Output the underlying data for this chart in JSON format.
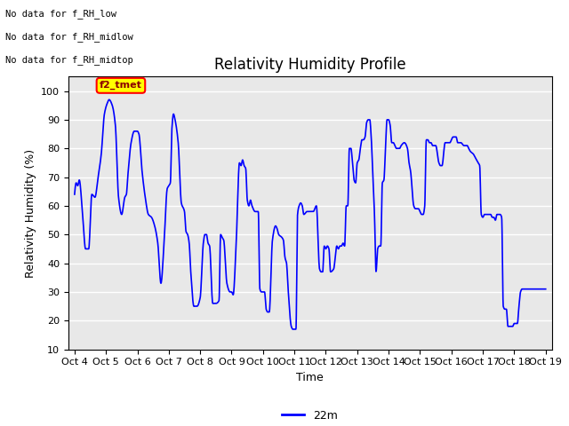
{
  "title": "Relativity Humidity Profile",
  "xlabel": "Time",
  "ylabel": "Relativity Humidity (%)",
  "ylim": [
    10,
    105
  ],
  "yticks": [
    10,
    20,
    30,
    40,
    50,
    60,
    70,
    80,
    90,
    100
  ],
  "legend_label": "22m",
  "legend_color": "blue",
  "line_color": "blue",
  "line_width": 1.2,
  "background_color": "#ffffff",
  "plot_bg_color": "#e8e8e8",
  "grid_color": "#ffffff",
  "annotations": [
    "No data for f_RH_low",
    "No data for f_RH_midlow",
    "No data for f_RH_midtop"
  ],
  "annotation_box_color": "#ffff00",
  "annotation_box_text": "f2_tmet",
  "x_tick_labels": [
    "Oct 4",
    "Oct 5",
    "Oct 6",
    "Oct 7",
    "Oct 8",
    "Oct 9",
    "Oct 10",
    "Oct 11",
    "Oct 12",
    "Oct 13",
    "Oct 14",
    "Oct 15",
    "Oct 16",
    "Oct 17",
    "Oct 18",
    "Oct 19"
  ],
  "title_fontsize": 12,
  "axis_fontsize": 9,
  "tick_fontsize": 8,
  "waypoints": [
    [
      0.0,
      64
    ],
    [
      0.05,
      68
    ],
    [
      0.1,
      67
    ],
    [
      0.15,
      69
    ],
    [
      0.25,
      58
    ],
    [
      0.35,
      45
    ],
    [
      0.45,
      45
    ],
    [
      0.55,
      64
    ],
    [
      0.65,
      63
    ],
    [
      0.75,
      70
    ],
    [
      0.85,
      78
    ],
    [
      0.95,
      92
    ],
    [
      1.05,
      96
    ],
    [
      1.1,
      97
    ],
    [
      1.2,
      95
    ],
    [
      1.3,
      88
    ],
    [
      1.4,
      63
    ],
    [
      1.5,
      57
    ],
    [
      1.6,
      63
    ],
    [
      1.65,
      64
    ],
    [
      1.7,
      71
    ],
    [
      1.8,
      82
    ],
    [
      1.9,
      86
    ],
    [
      2.0,
      86
    ],
    [
      2.05,
      85
    ],
    [
      2.15,
      72
    ],
    [
      2.25,
      63
    ],
    [
      2.35,
      57
    ],
    [
      2.45,
      56
    ],
    [
      2.55,
      53
    ],
    [
      2.65,
      47
    ],
    [
      2.75,
      33
    ],
    [
      2.85,
      47
    ],
    [
      2.95,
      66
    ],
    [
      3.0,
      67
    ],
    [
      3.05,
      68
    ],
    [
      3.1,
      87
    ],
    [
      3.15,
      92
    ],
    [
      3.2,
      90
    ],
    [
      3.3,
      82
    ],
    [
      3.4,
      61
    ],
    [
      3.5,
      58
    ],
    [
      3.55,
      51
    ],
    [
      3.6,
      50
    ],
    [
      3.65,
      47
    ],
    [
      3.7,
      37
    ],
    [
      3.8,
      25
    ],
    [
      3.9,
      25
    ],
    [
      4.0,
      28
    ],
    [
      4.1,
      47
    ],
    [
      4.15,
      50
    ],
    [
      4.2,
      50
    ],
    [
      4.25,
      47
    ],
    [
      4.3,
      46
    ],
    [
      4.4,
      26
    ],
    [
      4.5,
      26
    ],
    [
      4.6,
      27
    ],
    [
      4.65,
      50
    ],
    [
      4.7,
      49
    ],
    [
      4.75,
      48
    ],
    [
      4.85,
      33
    ],
    [
      4.95,
      30
    ],
    [
      5.0,
      30
    ],
    [
      5.05,
      29
    ],
    [
      5.15,
      48
    ],
    [
      5.25,
      75
    ],
    [
      5.3,
      74
    ],
    [
      5.35,
      76
    ],
    [
      5.4,
      74
    ],
    [
      5.45,
      73
    ],
    [
      5.5,
      62
    ],
    [
      5.55,
      60
    ],
    [
      5.6,
      62
    ],
    [
      5.65,
      60
    ],
    [
      5.75,
      58
    ],
    [
      5.85,
      58
    ],
    [
      5.9,
      31
    ],
    [
      5.95,
      30
    ],
    [
      6.0,
      30
    ],
    [
      6.05,
      30
    ],
    [
      6.1,
      24
    ],
    [
      6.15,
      23
    ],
    [
      6.2,
      23
    ],
    [
      6.3,
      48
    ],
    [
      6.4,
      53
    ],
    [
      6.45,
      52
    ],
    [
      6.5,
      50
    ],
    [
      6.6,
      49
    ],
    [
      6.65,
      48
    ],
    [
      6.7,
      42
    ],
    [
      6.75,
      40
    ],
    [
      6.8,
      31
    ],
    [
      6.9,
      18
    ],
    [
      6.95,
      17
    ],
    [
      7.0,
      17
    ],
    [
      7.05,
      17
    ],
    [
      7.1,
      57
    ],
    [
      7.15,
      60
    ],
    [
      7.2,
      61
    ],
    [
      7.25,
      60
    ],
    [
      7.3,
      57
    ],
    [
      7.4,
      58
    ],
    [
      7.5,
      58
    ],
    [
      7.6,
      58
    ],
    [
      7.7,
      60
    ],
    [
      7.8,
      38
    ],
    [
      7.85,
      37
    ],
    [
      7.9,
      37
    ],
    [
      7.95,
      46
    ],
    [
      8.0,
      45
    ],
    [
      8.05,
      46
    ],
    [
      8.1,
      45
    ],
    [
      8.15,
      37
    ],
    [
      8.25,
      38
    ],
    [
      8.35,
      46
    ],
    [
      8.4,
      45
    ],
    [
      8.45,
      46
    ],
    [
      8.5,
      46
    ],
    [
      8.55,
      47
    ],
    [
      8.6,
      46
    ],
    [
      8.65,
      60
    ],
    [
      8.7,
      60
    ],
    [
      8.75,
      80
    ],
    [
      8.8,
      80
    ],
    [
      8.85,
      75
    ],
    [
      8.9,
      69
    ],
    [
      8.95,
      68
    ],
    [
      9.0,
      75
    ],
    [
      9.05,
      76
    ],
    [
      9.1,
      80
    ],
    [
      9.15,
      83
    ],
    [
      9.2,
      83
    ],
    [
      9.25,
      84
    ],
    [
      9.3,
      89
    ],
    [
      9.35,
      90
    ],
    [
      9.4,
      90
    ],
    [
      9.45,
      83
    ],
    [
      9.5,
      70
    ],
    [
      9.55,
      57
    ],
    [
      9.6,
      37
    ],
    [
      9.65,
      45
    ],
    [
      9.7,
      46
    ],
    [
      9.75,
      46
    ],
    [
      9.8,
      68
    ],
    [
      9.85,
      69
    ],
    [
      9.9,
      80
    ],
    [
      9.95,
      90
    ],
    [
      10.0,
      90
    ],
    [
      10.05,
      88
    ],
    [
      10.1,
      82
    ],
    [
      10.15,
      82
    ],
    [
      10.2,
      81
    ],
    [
      10.25,
      80
    ],
    [
      10.3,
      80
    ],
    [
      10.35,
      80
    ],
    [
      10.4,
      81
    ],
    [
      10.5,
      82
    ],
    [
      10.6,
      80
    ],
    [
      10.65,
      75
    ],
    [
      10.7,
      72
    ],
    [
      10.8,
      60
    ],
    [
      10.85,
      59
    ],
    [
      10.9,
      59
    ],
    [
      10.95,
      59
    ],
    [
      11.0,
      58
    ],
    [
      11.05,
      57
    ],
    [
      11.1,
      57
    ],
    [
      11.15,
      60
    ],
    [
      11.2,
      83
    ],
    [
      11.25,
      83
    ],
    [
      11.3,
      82
    ],
    [
      11.35,
      82
    ],
    [
      11.4,
      81
    ],
    [
      11.5,
      81
    ],
    [
      11.6,
      75
    ],
    [
      11.65,
      74
    ],
    [
      11.7,
      74
    ],
    [
      11.8,
      82
    ],
    [
      11.85,
      82
    ],
    [
      11.9,
      82
    ],
    [
      11.95,
      82
    ],
    [
      12.0,
      83
    ],
    [
      12.05,
      84
    ],
    [
      12.1,
      84
    ],
    [
      12.15,
      84
    ],
    [
      12.2,
      82
    ],
    [
      12.3,
      82
    ],
    [
      12.4,
      81
    ],
    [
      12.5,
      81
    ],
    [
      12.55,
      80
    ],
    [
      12.6,
      79
    ],
    [
      12.7,
      78
    ],
    [
      12.75,
      77
    ],
    [
      12.8,
      76
    ],
    [
      12.85,
      75
    ],
    [
      12.9,
      74
    ],
    [
      12.95,
      57
    ],
    [
      13.0,
      56
    ],
    [
      13.05,
      57
    ],
    [
      13.1,
      57
    ],
    [
      13.15,
      57
    ],
    [
      13.2,
      57
    ],
    [
      13.25,
      57
    ],
    [
      13.3,
      56
    ],
    [
      13.35,
      56
    ],
    [
      13.4,
      55
    ],
    [
      13.45,
      57
    ],
    [
      13.5,
      57
    ],
    [
      13.55,
      57
    ],
    [
      13.6,
      56
    ],
    [
      13.65,
      25
    ],
    [
      13.7,
      24
    ],
    [
      13.75,
      24
    ],
    [
      13.8,
      18
    ],
    [
      13.85,
      18
    ],
    [
      13.9,
      18
    ],
    [
      13.95,
      18
    ],
    [
      14.0,
      19
    ],
    [
      14.05,
      19
    ],
    [
      14.1,
      19
    ],
    [
      14.15,
      25
    ],
    [
      14.2,
      30
    ],
    [
      14.25,
      31
    ],
    [
      14.3,
      31
    ],
    [
      14.4,
      31
    ],
    [
      14.5,
      31
    ],
    [
      15.0,
      31
    ]
  ]
}
